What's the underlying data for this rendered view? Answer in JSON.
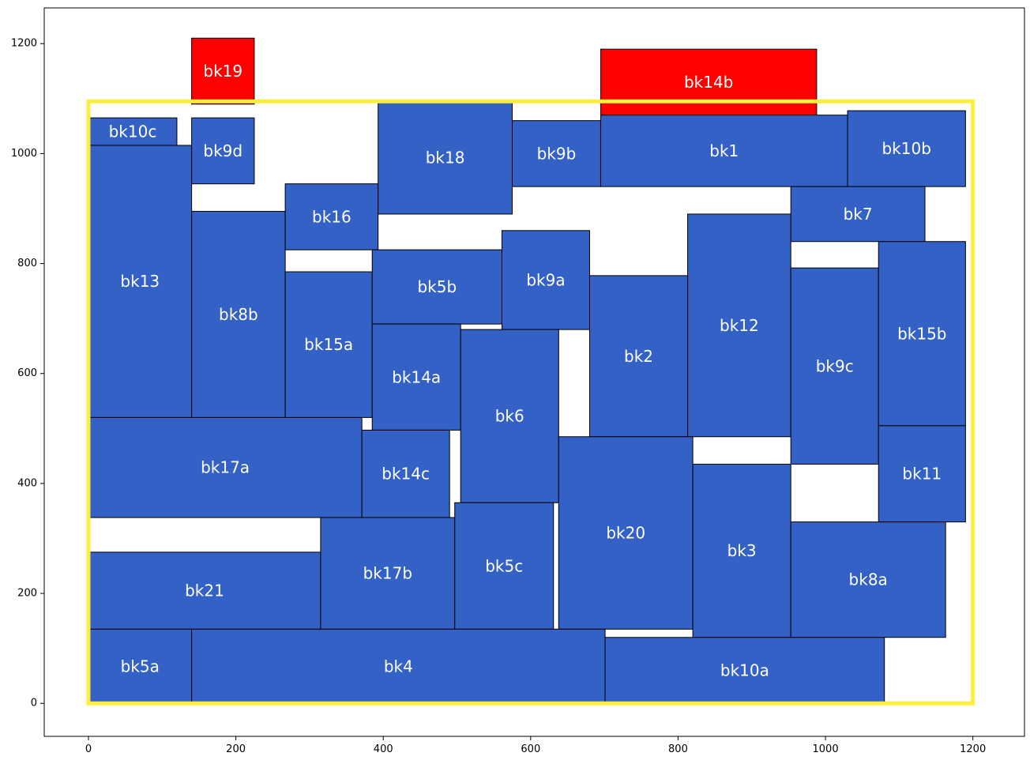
{
  "chart_data": {
    "type": "floorplan",
    "title": "",
    "xlabel": "",
    "ylabel": "",
    "xlim": [
      -60,
      1270
    ],
    "ylim": [
      -60,
      1265
    ],
    "x_ticks": [
      0,
      200,
      400,
      600,
      800,
      1000,
      1200
    ],
    "y_ticks": [
      0,
      200,
      400,
      600,
      800,
      1000,
      1200
    ],
    "outline": {
      "x0": 0,
      "y0": 0,
      "x1": 1200,
      "y1": 1095,
      "color": "#fcee3a"
    },
    "colors": {
      "placed": "#3461c5",
      "overflow": "#ff0000",
      "edge": "#000000",
      "label": "#ffffff"
    },
    "blocks": [
      {
        "name": "bk19",
        "x0": 140,
        "y0": 1090,
        "x1": 225,
        "y1": 1210,
        "status": "overflow"
      },
      {
        "name": "bk14b",
        "x0": 695,
        "y0": 1070,
        "x1": 988,
        "y1": 1190,
        "status": "overflow"
      },
      {
        "name": "bk10c",
        "x0": 0,
        "y0": 1015,
        "x1": 120,
        "y1": 1065,
        "status": "placed"
      },
      {
        "name": "bk13",
        "x0": 0,
        "y0": 520,
        "x1": 140,
        "y1": 1015,
        "status": "placed"
      },
      {
        "name": "bk9d",
        "x0": 140,
        "y0": 945,
        "x1": 225,
        "y1": 1065,
        "status": "placed"
      },
      {
        "name": "bk8b",
        "x0": 140,
        "y0": 520,
        "x1": 267,
        "y1": 895,
        "status": "placed"
      },
      {
        "name": "bk16",
        "x0": 267,
        "y0": 825,
        "x1": 393,
        "y1": 945,
        "status": "placed"
      },
      {
        "name": "bk15a",
        "x0": 267,
        "y0": 520,
        "x1": 385,
        "y1": 785,
        "status": "placed"
      },
      {
        "name": "bk18",
        "x0": 393,
        "y0": 890,
        "x1": 575,
        "y1": 1095,
        "status": "placed"
      },
      {
        "name": "bk9b",
        "x0": 575,
        "y0": 940,
        "x1": 695,
        "y1": 1060,
        "status": "placed"
      },
      {
        "name": "bk1",
        "x0": 695,
        "y0": 940,
        "x1": 1030,
        "y1": 1070,
        "status": "placed"
      },
      {
        "name": "bk10b",
        "x0": 1030,
        "y0": 940,
        "x1": 1190,
        "y1": 1078,
        "status": "placed"
      },
      {
        "name": "bk7",
        "x0": 953,
        "y0": 840,
        "x1": 1135,
        "y1": 940,
        "status": "placed"
      },
      {
        "name": "bk5b",
        "x0": 385,
        "y0": 690,
        "x1": 561,
        "y1": 825,
        "status": "placed"
      },
      {
        "name": "bk9a",
        "x0": 561,
        "y0": 680,
        "x1": 680,
        "y1": 860,
        "status": "placed"
      },
      {
        "name": "bk12",
        "x0": 813,
        "y0": 485,
        "x1": 953,
        "y1": 890,
        "status": "placed"
      },
      {
        "name": "bk2",
        "x0": 680,
        "y0": 485,
        "x1": 813,
        "y1": 778,
        "status": "placed"
      },
      {
        "name": "bk9c",
        "x0": 953,
        "y0": 435,
        "x1": 1072,
        "y1": 792,
        "status": "placed"
      },
      {
        "name": "bk15b",
        "x0": 1072,
        "y0": 505,
        "x1": 1190,
        "y1": 840,
        "status": "placed"
      },
      {
        "name": "bk14a",
        "x0": 385,
        "y0": 497,
        "x1": 505,
        "y1": 690,
        "status": "placed"
      },
      {
        "name": "bk6",
        "x0": 505,
        "y0": 365,
        "x1": 638,
        "y1": 680,
        "status": "placed"
      },
      {
        "name": "bk17a",
        "x0": 0,
        "y0": 338,
        "x1": 371,
        "y1": 520,
        "status": "placed"
      },
      {
        "name": "bk14c",
        "x0": 371,
        "y0": 338,
        "x1": 490,
        "y1": 497,
        "status": "placed"
      },
      {
        "name": "bk11",
        "x0": 1072,
        "y0": 330,
        "x1": 1190,
        "y1": 505,
        "status": "placed"
      },
      {
        "name": "bk20",
        "x0": 638,
        "y0": 135,
        "x1": 820,
        "y1": 485,
        "status": "placed"
      },
      {
        "name": "bk3",
        "x0": 820,
        "y0": 120,
        "x1": 953,
        "y1": 435,
        "status": "placed"
      },
      {
        "name": "bk8a",
        "x0": 953,
        "y0": 120,
        "x1": 1163,
        "y1": 330,
        "status": "placed"
      },
      {
        "name": "bk21",
        "x0": 0,
        "y0": 135,
        "x1": 315,
        "y1": 275,
        "status": "placed"
      },
      {
        "name": "bk17b",
        "x0": 315,
        "y0": 135,
        "x1": 497,
        "y1": 338,
        "status": "placed"
      },
      {
        "name": "bk5c",
        "x0": 497,
        "y0": 135,
        "x1": 631,
        "y1": 365,
        "status": "placed"
      },
      {
        "name": "bk5a",
        "x0": 0,
        "y0": 0,
        "x1": 140,
        "y1": 135,
        "status": "placed"
      },
      {
        "name": "bk4",
        "x0": 140,
        "y0": 0,
        "x1": 701,
        "y1": 135,
        "status": "placed"
      },
      {
        "name": "bk10a",
        "x0": 701,
        "y0": 0,
        "x1": 1080,
        "y1": 120,
        "status": "placed"
      }
    ]
  }
}
